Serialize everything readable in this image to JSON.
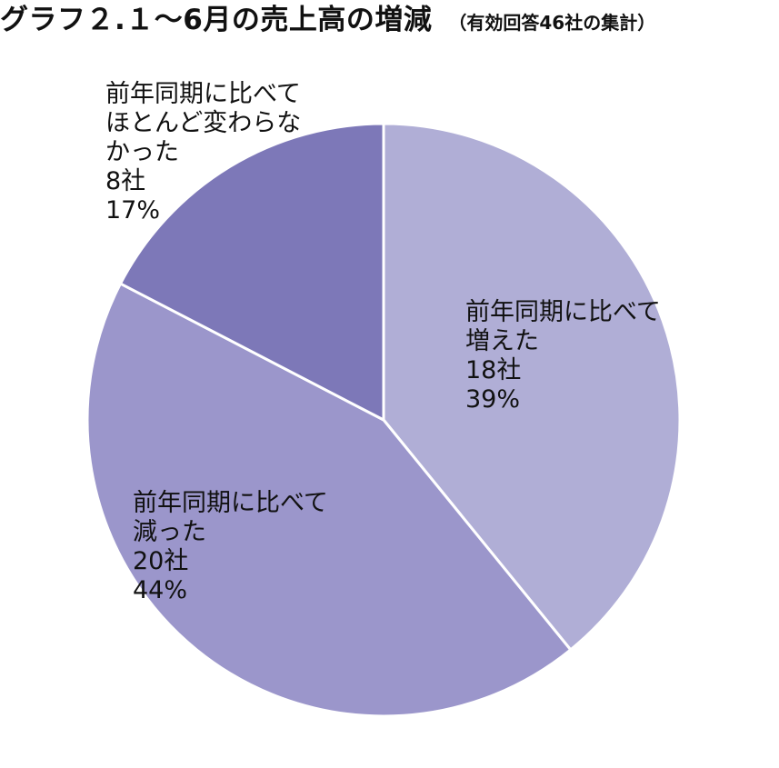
{
  "title": {
    "main": "グラフ２.１〜6月の売上高の増減",
    "sub": "（有効回答46社の集計）"
  },
  "chart_data": {
    "type": "pie",
    "title": "グラフ２.１〜6月の売上高の増減",
    "subtitle": "（有効回答46社の集計）",
    "slices": [
      {
        "label": "前年同期に比べて増えた",
        "label_lines": [
          "前年同期に比べて",
          "増えた"
        ],
        "count": 18,
        "count_label": "18社",
        "percent": 39,
        "percent_label": "39%",
        "color": "#b0aed6"
      },
      {
        "label": "前年同期に比べて減った",
        "label_lines": [
          "前年同期に比べて",
          "減った"
        ],
        "count": 20,
        "count_label": "20社",
        "percent": 44,
        "percent_label": "44%",
        "color": "#9b96cb"
      },
      {
        "label": "前年同期に比べてほとんど変わらなかった",
        "label_lines": [
          "前年同期に比べて",
          "ほとんど変わらな",
          "かった"
        ],
        "count": 8,
        "count_label": "8社",
        "percent": 17,
        "percent_label": "17%",
        "color": "#7d78b8"
      }
    ],
    "total_label": "有効回答46社",
    "start_angle_deg": 0,
    "direction": "clockwise"
  }
}
